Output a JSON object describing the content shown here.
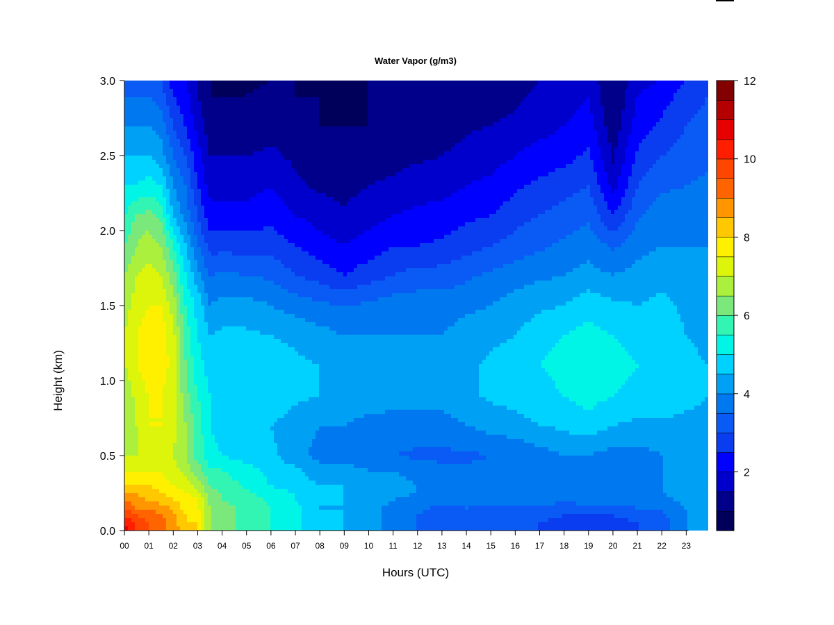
{
  "chart_data": {
    "type": "heatmap",
    "title": "Water Vapor (g/m3)",
    "xlabel": "Hours (UTC)",
    "ylabel": "Height (km)",
    "x_unit": "hours UTC",
    "xlim": [
      0,
      23.9
    ],
    "ylim": [
      0,
      3
    ],
    "xticks": [
      "00",
      "01",
      "02",
      "03",
      "04",
      "05",
      "06",
      "07",
      "08",
      "09",
      "10",
      "11",
      "12",
      "13",
      "14",
      "15",
      "16",
      "17",
      "18",
      "19",
      "20",
      "21",
      "22",
      "23"
    ],
    "yticks": [
      "0.0",
      "0.5",
      "1.0",
      "1.5",
      "2.0",
      "2.5",
      "3.0"
    ],
    "colorbar": {
      "range": [
        0.5,
        12
      ],
      "ticks": [
        "2",
        "4",
        "6",
        "8",
        "10",
        "12"
      ],
      "colors": [
        "#00005a",
        "#00008b",
        "#0000cd",
        "#0000ff",
        "#0a3cf0",
        "#0a5af5",
        "#0078f0",
        "#00a0f5",
        "#00d2ff",
        "#00f5e6",
        "#32f5b4",
        "#7ae87a",
        "#aaf03c",
        "#dcf50a",
        "#fff000",
        "#ffc800",
        "#ff9600",
        "#ff6400",
        "#ff4600",
        "#ff1e00",
        "#e60000",
        "#b40000",
        "#820000"
      ]
    },
    "grid_hours": [
      0,
      0.5,
      1,
      1.5,
      2,
      2.5,
      3,
      3.5,
      4,
      5,
      6,
      7,
      8,
      9,
      10,
      11,
      12,
      13,
      14,
      15,
      16,
      17,
      18,
      19,
      20,
      21,
      22,
      23,
      23.9
    ],
    "grid_heights_km": [
      0,
      0.05,
      0.1,
      0.15,
      0.2,
      0.25,
      0.3,
      0.4,
      0.5,
      0.7,
      0.9,
      1.1,
      1.3,
      1.5,
      1.7,
      1.9,
      2.1,
      2.3,
      2.5,
      2.7,
      2.9,
      3.0
    ],
    "values_g_m3": [
      [
        11.0,
        10.5,
        10.0,
        9.5,
        9.0,
        8.5,
        8.0,
        7.5,
        7.0,
        6.5,
        6.5,
        7.0,
        7.0,
        6.8,
        6.5,
        6.0,
        5.5,
        5.0,
        4.5,
        4.0,
        3.5,
        3.2
      ],
      [
        10.0,
        9.8,
        9.5,
        9.0,
        8.8,
        8.5,
        8.0,
        7.5,
        7.0,
        7.0,
        7.2,
        7.5,
        7.5,
        7.2,
        7.0,
        6.5,
        6.0,
        5.0,
        4.5,
        4.0,
        3.5,
        3.2
      ],
      [
        9.5,
        9.5,
        9.3,
        9.0,
        8.5,
        8.2,
        8.0,
        7.5,
        7.2,
        7.5,
        7.5,
        7.8,
        7.8,
        7.5,
        7.2,
        6.8,
        6.2,
        5.2,
        4.5,
        4.0,
        3.5,
        3.0
      ],
      [
        9.2,
        9.2,
        9.0,
        8.8,
        8.3,
        8.0,
        7.8,
        7.4,
        7.2,
        7.5,
        7.5,
        7.8,
        7.8,
        7.5,
        7.0,
        6.5,
        5.8,
        5.0,
        4.2,
        3.8,
        3.2,
        3.0
      ],
      [
        8.8,
        8.8,
        8.6,
        8.4,
        8.0,
        7.8,
        7.5,
        7.2,
        7.0,
        7.2,
        7.2,
        7.3,
        7.2,
        6.8,
        6.2,
        5.5,
        4.5,
        4.0,
        3.5,
        3.0,
        2.5,
        2.3
      ],
      [
        8.2,
        8.0,
        8.0,
        7.8,
        7.8,
        7.5,
        7.2,
        6.8,
        6.5,
        6.5,
        6.2,
        6.0,
        5.8,
        5.5,
        5.0,
        4.5,
        3.8,
        3.5,
        3.0,
        2.5,
        2.2,
        2.0
      ],
      [
        8.0,
        8.0,
        7.8,
        7.6,
        7.5,
        7.2,
        6.8,
        6.2,
        5.8,
        5.8,
        5.5,
        5.2,
        5.0,
        4.8,
        4.2,
        3.5,
        3.0,
        2.5,
        2.2,
        1.8,
        1.5,
        1.5
      ],
      [
        6.5,
        6.5,
        6.5,
        6.5,
        6.4,
        6.2,
        6.0,
        5.6,
        5.2,
        5.0,
        5.0,
        4.8,
        4.5,
        4.0,
        3.5,
        2.8,
        2.2,
        1.8,
        1.5,
        1.2,
        1.0,
        1.0
      ],
      [
        6.2,
        6.2,
        6.2,
        6.2,
        6.0,
        6.0,
        5.8,
        5.5,
        5.0,
        4.8,
        5.0,
        4.9,
        4.6,
        4.2,
        3.6,
        2.8,
        2.2,
        1.8,
        1.5,
        1.2,
        1.0,
        0.9
      ],
      [
        5.8,
        5.8,
        5.8,
        5.8,
        5.8,
        5.6,
        5.4,
        5.2,
        4.8,
        4.8,
        5.0,
        5.0,
        4.6,
        4.2,
        3.5,
        2.8,
        2.2,
        1.8,
        1.5,
        1.2,
        1.0,
        0.9
      ],
      [
        5.5,
        5.5,
        5.5,
        5.5,
        5.4,
        5.2,
        5.0,
        4.8,
        4.6,
        4.5,
        4.8,
        4.8,
        4.5,
        4.0,
        3.4,
        2.8,
        2.3,
        2.0,
        1.6,
        1.3,
        1.1,
        1.0
      ],
      [
        5.2,
        5.2,
        5.2,
        5.2,
        5.0,
        5.0,
        4.8,
        4.6,
        4.2,
        4.3,
        4.6,
        4.6,
        4.4,
        3.8,
        3.0,
        2.5,
        2.0,
        1.6,
        1.4,
        1.2,
        1.0,
        1.0
      ],
      [
        4.5,
        4.5,
        4.5,
        4.5,
        4.5,
        4.5,
        4.5,
        4.2,
        3.8,
        4.0,
        4.5,
        4.5,
        4.2,
        3.6,
        2.8,
        2.2,
        1.8,
        1.4,
        1.2,
        1.0,
        1.0,
        0.9
      ],
      [
        4.5,
        4.5,
        4.5,
        4.5,
        4.5,
        4.5,
        4.5,
        4.2,
        3.8,
        4.0,
        4.4,
        4.4,
        4.0,
        3.5,
        2.5,
        2.0,
        1.6,
        1.3,
        1.1,
        1.0,
        0.9,
        0.9
      ],
      [
        4.2,
        4.2,
        4.2,
        4.2,
        4.3,
        4.3,
        4.3,
        4.0,
        3.6,
        3.8,
        4.3,
        4.3,
        4.0,
        3.6,
        2.8,
        2.2,
        1.8,
        1.5,
        1.2,
        1.0,
        1.0,
        1.0
      ],
      [
        3.8,
        3.8,
        3.8,
        3.8,
        4.0,
        4.2,
        4.2,
        4.0,
        3.5,
        3.8,
        4.2,
        4.2,
        4.0,
        3.8,
        3.0,
        2.5,
        2.0,
        1.6,
        1.3,
        1.1,
        1.0,
        1.0
      ],
      [
        3.5,
        3.5,
        3.5,
        3.6,
        3.8,
        4.0,
        4.0,
        3.8,
        3.4,
        3.8,
        4.2,
        4.2,
        4.0,
        3.8,
        3.2,
        2.5,
        2.1,
        1.8,
        1.4,
        1.2,
        1.1,
        1.0
      ],
      [
        3.2,
        3.2,
        3.2,
        3.4,
        3.6,
        3.8,
        3.8,
        3.6,
        3.4,
        3.8,
        4.2,
        4.2,
        4.0,
        3.8,
        3.2,
        2.6,
        2.2,
        1.8,
        1.5,
        1.2,
        1.1,
        1.0
      ],
      [
        3.2,
        3.2,
        3.3,
        3.5,
        3.6,
        3.8,
        3.8,
        3.6,
        3.4,
        4.0,
        4.4,
        4.4,
        4.2,
        3.9,
        3.4,
        2.8,
        2.4,
        2.0,
        1.7,
        1.4,
        1.2,
        1.1
      ],
      [
        3.0,
        3.0,
        3.2,
        3.4,
        3.6,
        3.8,
        3.8,
        3.6,
        3.5,
        4.2,
        4.6,
        4.6,
        4.4,
        4.0,
        3.6,
        3.0,
        2.5,
        2.1,
        1.8,
        1.5,
        1.3,
        1.2
      ],
      [
        3.0,
        3.0,
        3.2,
        3.4,
        3.6,
        3.8,
        3.8,
        3.6,
        3.6,
        4.3,
        4.7,
        4.7,
        4.5,
        4.2,
        3.8,
        3.2,
        2.8,
        2.4,
        2.0,
        1.6,
        1.4,
        1.3
      ],
      [
        3.0,
        3.0,
        3.2,
        3.4,
        3.6,
        3.8,
        3.8,
        3.8,
        3.8,
        4.5,
        4.8,
        5.0,
        4.8,
        4.4,
        3.9,
        3.4,
        3.0,
        2.6,
        2.2,
        1.8,
        1.6,
        1.5
      ],
      [
        2.8,
        2.8,
        3.0,
        3.3,
        3.6,
        3.8,
        3.8,
        3.8,
        4.0,
        4.6,
        5.0,
        5.2,
        5.0,
        4.5,
        4.0,
        3.6,
        3.2,
        2.8,
        2.3,
        2.0,
        1.7,
        1.6
      ],
      [
        2.8,
        2.8,
        3.0,
        3.4,
        3.6,
        3.8,
        3.8,
        3.8,
        4.0,
        4.8,
        5.2,
        5.4,
        5.2,
        4.8,
        4.2,
        3.8,
        3.4,
        3.0,
        2.6,
        2.2,
        2.0,
        1.8
      ],
      [
        2.8,
        2.8,
        3.0,
        3.4,
        3.6,
        3.8,
        3.8,
        3.8,
        3.8,
        4.5,
        5.0,
        5.2,
        5.0,
        4.6,
        4.0,
        3.4,
        2.5,
        1.8,
        1.4,
        1.2,
        1.0,
        1.0
      ],
      [
        3.0,
        3.0,
        3.2,
        3.5,
        3.8,
        3.9,
        4.0,
        3.9,
        3.8,
        4.4,
        4.8,
        5.0,
        4.8,
        4.5,
        4.2,
        3.8,
        3.4,
        3.0,
        2.6,
        2.2,
        2.0,
        1.8
      ],
      [
        3.2,
        3.2,
        3.4,
        3.6,
        3.8,
        4.0,
        4.0,
        4.0,
        4.0,
        4.4,
        4.8,
        4.9,
        4.8,
        4.6,
        4.4,
        4.0,
        3.8,
        3.4,
        3.0,
        2.6,
        2.3,
        2.0
      ],
      [
        4.0,
        4.0,
        4.0,
        4.0,
        4.2,
        4.3,
        4.3,
        4.2,
        4.0,
        4.4,
        4.6,
        4.6,
        4.5,
        4.4,
        4.2,
        4.0,
        3.8,
        3.5,
        3.2,
        3.0,
        2.7,
        2.5
      ],
      [
        4.2,
        4.2,
        4.3,
        4.4,
        4.5,
        4.5,
        4.5,
        4.4,
        4.2,
        4.4,
        4.5,
        4.5,
        4.4,
        4.2,
        4.0,
        4.0,
        3.8,
        3.6,
        3.4,
        3.2,
        3.0,
        2.8
      ]
    ]
  }
}
